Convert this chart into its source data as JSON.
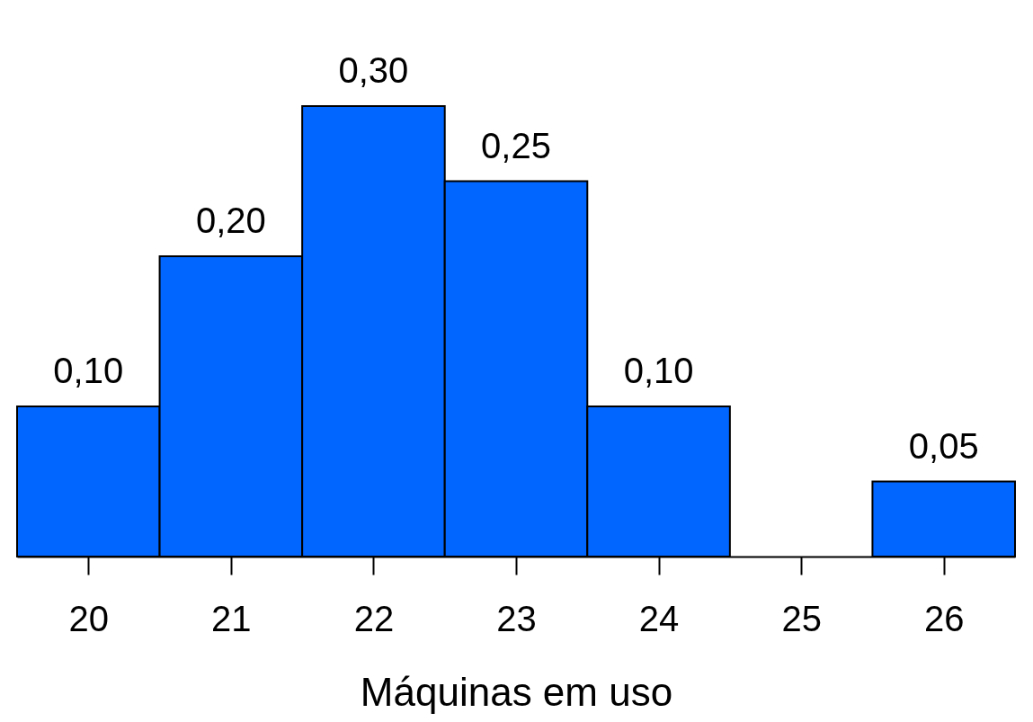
{
  "chart_data": {
    "type": "bar",
    "xlabel": "Máquinas em uso",
    "categories": [
      "20",
      "21",
      "22",
      "23",
      "24",
      "25",
      "26"
    ],
    "values": [
      0.1,
      0.2,
      0.3,
      0.25,
      0.1,
      null,
      0.05
    ],
    "value_labels": [
      "0,10",
      "0,20",
      "0,30",
      "0,25",
      "0,10",
      null,
      "0,05"
    ],
    "color": "#0066ff",
    "grid": false
  }
}
